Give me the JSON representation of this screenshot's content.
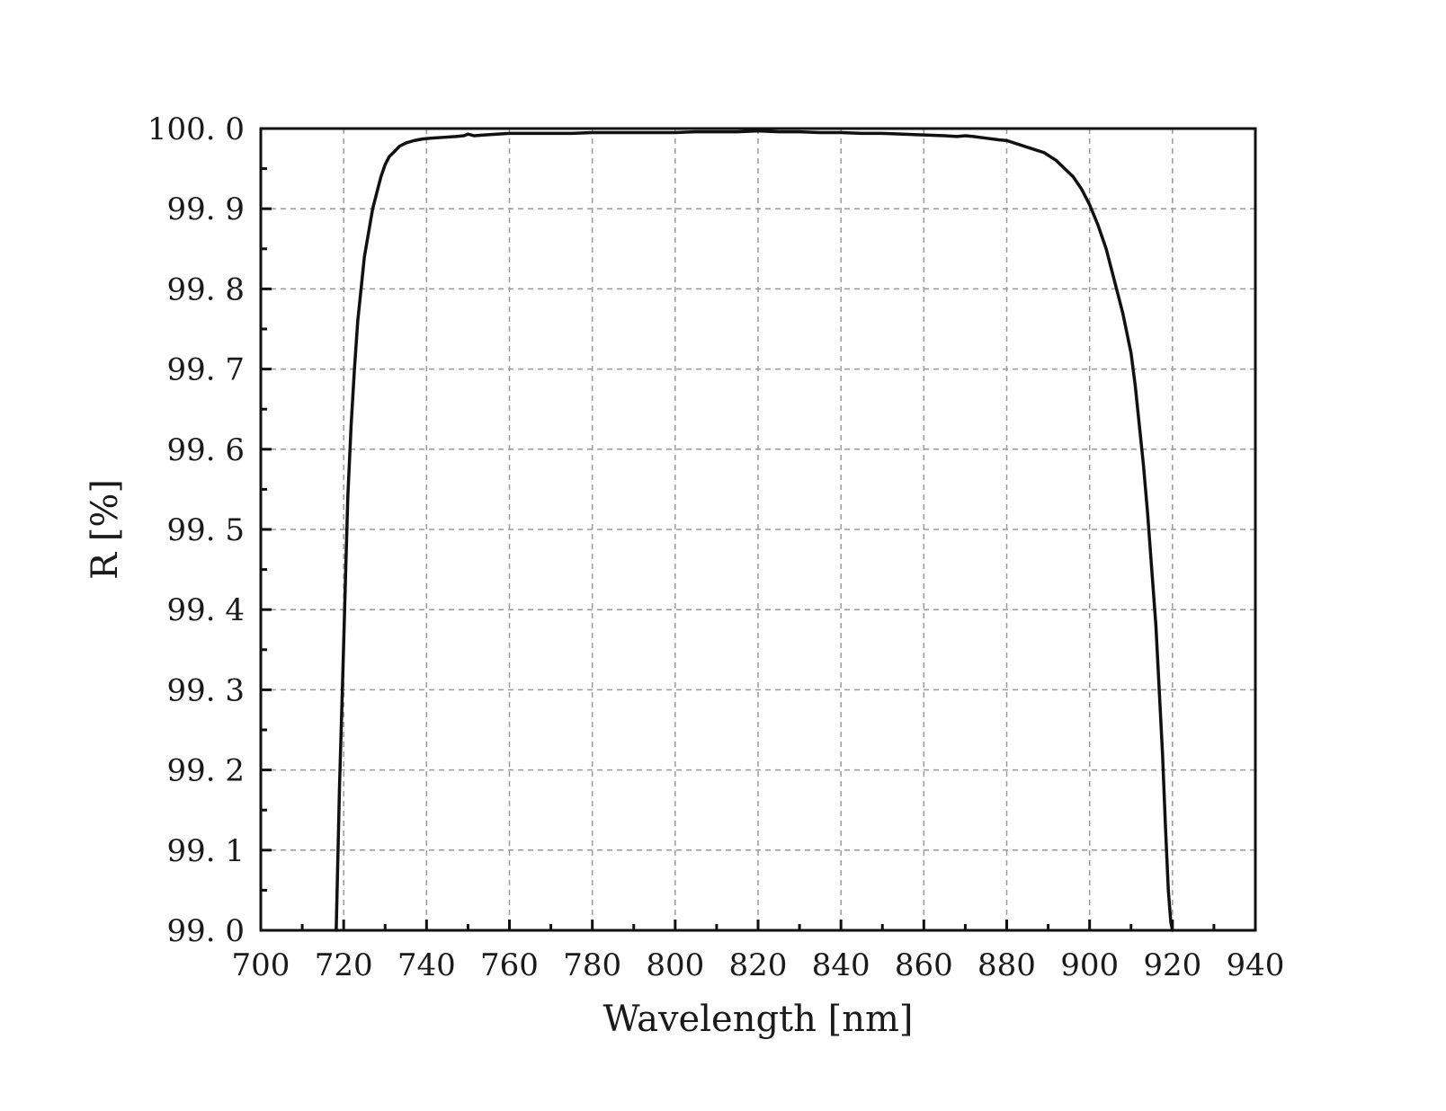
{
  "chart_data": {
    "type": "line",
    "title": "",
    "xlabel": "Wavelength [nm]",
    "ylabel": "R [%]",
    "xlim": [
      700,
      940
    ],
    "ylim": [
      99.0,
      100.0
    ],
    "x_ticks": [
      700,
      720,
      740,
      760,
      780,
      800,
      820,
      840,
      860,
      880,
      900,
      920,
      940
    ],
    "y_ticks": [
      99.0,
      99.1,
      99.2,
      99.3,
      99.4,
      99.5,
      99.6,
      99.7,
      99.8,
      99.9,
      100.0
    ],
    "x_tick_labels": [
      "700",
      "720",
      "740",
      "760",
      "780",
      "800",
      "820",
      "840",
      "860",
      "880",
      "900",
      "920",
      "940"
    ],
    "y_tick_labels": [
      "99. 0",
      "99. 1",
      "99. 2",
      "99. 3",
      "99. 4",
      "99. 5",
      "99. 6",
      "99. 7",
      "99. 8",
      "99. 9",
      "100. 0"
    ],
    "grid": true,
    "line_color": "#111111",
    "grid_color": "#9a9a9a",
    "series": [
      {
        "x": [
          718.2,
          719.0,
          719.8,
          720.5,
          721.0,
          721.8,
          722.6,
          723.4,
          724.2,
          725.0,
          726.0,
          727.0,
          728.0,
          729.0,
          730.0,
          731.0,
          732.0,
          733.5,
          735.0,
          737.0,
          739.0,
          741.0,
          744.0,
          747.0,
          749.0,
          750.0,
          751.5,
          754.0,
          757.0,
          760.0,
          765.0,
          770.0,
          775.0,
          780.0,
          785.0,
          790.0,
          795.0,
          800.0,
          805.0,
          810.0,
          815.0,
          820.0,
          825.0,
          830.0,
          835.0,
          840.0,
          845.0,
          850.0,
          855.0,
          860.0,
          865.0,
          868.0,
          870.0,
          872.0,
          875.0,
          878.0,
          880.0,
          883.0,
          886.0,
          889.0,
          892.0,
          894.0,
          896.0,
          898.0,
          900.0,
          902.0,
          904.0,
          906.0,
          908.0,
          910.0,
          911.0,
          912.0,
          913.0,
          914.0,
          915.0,
          916.0,
          916.8,
          917.6,
          918.3,
          919.0,
          919.6,
          920.0
        ],
        "y": [
          99.0,
          99.18,
          99.32,
          99.45,
          99.54,
          99.63,
          99.7,
          99.76,
          99.8,
          99.84,
          99.87,
          99.9,
          99.92,
          99.94,
          99.955,
          99.965,
          99.97,
          99.978,
          99.982,
          99.985,
          99.987,
          99.988,
          99.989,
          99.99,
          99.991,
          99.993,
          99.991,
          99.992,
          99.993,
          99.994,
          99.994,
          99.994,
          99.994,
          99.995,
          99.995,
          99.995,
          99.995,
          99.995,
          99.996,
          99.996,
          99.996,
          99.997,
          99.996,
          99.996,
          99.995,
          99.995,
          99.994,
          99.994,
          99.993,
          99.992,
          99.991,
          99.99,
          99.991,
          99.99,
          99.988,
          99.986,
          99.985,
          99.98,
          99.975,
          99.97,
          99.96,
          99.95,
          99.94,
          99.925,
          99.905,
          99.88,
          99.85,
          99.81,
          99.77,
          99.72,
          99.68,
          99.63,
          99.58,
          99.52,
          99.45,
          99.38,
          99.3,
          99.22,
          99.13,
          99.05,
          99.01,
          99.0
        ]
      }
    ]
  }
}
